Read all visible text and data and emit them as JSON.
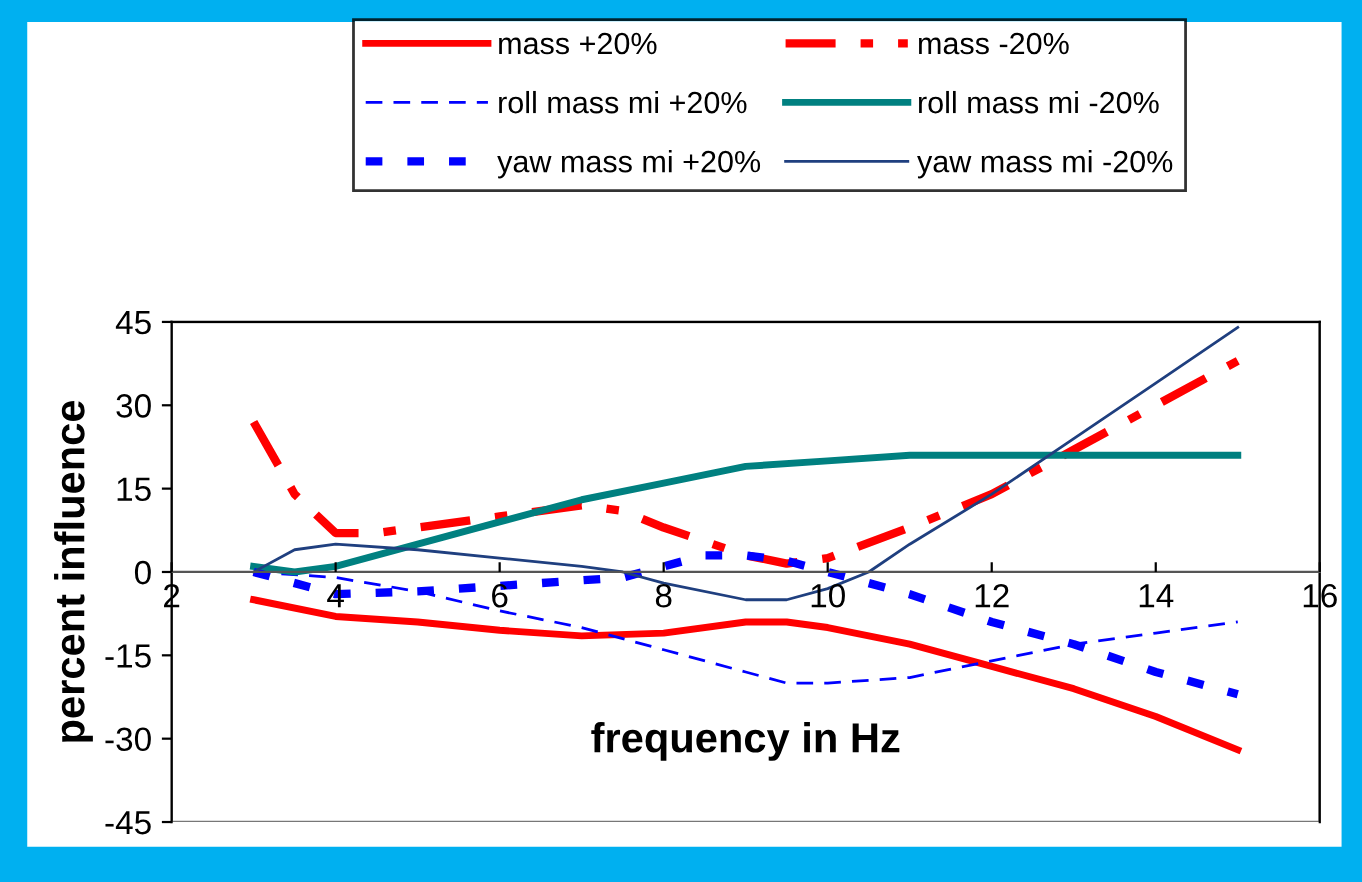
{
  "chart_data": {
    "type": "line",
    "xlabel": "frequency in Hz",
    "ylabel": "percent influence",
    "xlim": [
      2,
      16
    ],
    "xticks": [
      2,
      4,
      6,
      8,
      10,
      12,
      14,
      16
    ],
    "ylim": [
      -45,
      45
    ],
    "yticks": [
      -45,
      -30,
      -15,
      0,
      15,
      30,
      45
    ],
    "grid": false,
    "legend": "top",
    "marker": "none",
    "series": [
      {
        "name": "mass +20%",
        "color": "#ff0000",
        "line_style": "solid",
        "x": [
          3,
          4,
          5,
          6,
          7,
          8,
          9,
          9.5,
          10,
          11,
          12,
          13,
          14,
          15
        ],
        "values": [
          -5,
          -8,
          -9,
          -10.5,
          -11.5,
          -11,
          -9,
          -9,
          -10,
          -13,
          -17,
          -21,
          -26,
          -32
        ]
      },
      {
        "name": "mass -20%",
        "color": "#ff0000",
        "line_style": "dashdot",
        "x": [
          3,
          3.5,
          4,
          4.5,
          5,
          6,
          7,
          7.5,
          8,
          9,
          9.5,
          10,
          11,
          12,
          13,
          14,
          15
        ],
        "values": [
          27,
          14,
          7,
          7,
          8,
          10,
          12,
          11,
          8,
          3,
          1.5,
          2.5,
          8,
          14,
          22,
          30,
          38
        ]
      },
      {
        "name": "roll mass mi +20%",
        "color": "#0000ff",
        "line_style": "dashed",
        "x": [
          3,
          4,
          5,
          6,
          7,
          8,
          9,
          9.5,
          10,
          11,
          12,
          13,
          14,
          15
        ],
        "values": [
          0,
          -1,
          -3.5,
          -7,
          -10,
          -14,
          -18,
          -20,
          -20,
          -19,
          -16,
          -13,
          -11,
          -9
        ]
      },
      {
        "name": "roll mass mi -20%",
        "color": "#008080",
        "line_style": "solid",
        "x": [
          3,
          3.5,
          4,
          5,
          6,
          7,
          8,
          9,
          10,
          11,
          12,
          15
        ],
        "values": [
          1,
          0,
          1,
          5,
          9,
          13,
          16,
          19,
          20,
          21,
          21,
          21
        ]
      },
      {
        "name": "yaw mass mi +20%",
        "color": "#0000ff",
        "line_style": "dotted",
        "x": [
          3,
          4,
          5,
          6,
          7,
          7.5,
          8,
          8.5,
          9,
          9.5,
          10,
          11,
          12,
          13,
          14,
          15
        ],
        "values": [
          0,
          -4,
          -3.5,
          -2.5,
          -1.5,
          -1,
          1,
          3,
          3,
          2,
          0,
          -4,
          -9,
          -13,
          -18,
          -22
        ]
      },
      {
        "name": "yaw mass mi -20%",
        "color": "#1f3f7f",
        "line_style": "solid",
        "x": [
          3,
          3.5,
          4,
          5,
          6,
          7,
          7.5,
          8,
          9,
          9.5,
          10,
          10.5,
          11,
          12,
          13,
          14,
          15
        ],
        "values": [
          0,
          4,
          5,
          4,
          2.5,
          1,
          0,
          -2,
          -5,
          -5,
          -3,
          0,
          5,
          14,
          24,
          34,
          44
        ]
      }
    ]
  }
}
